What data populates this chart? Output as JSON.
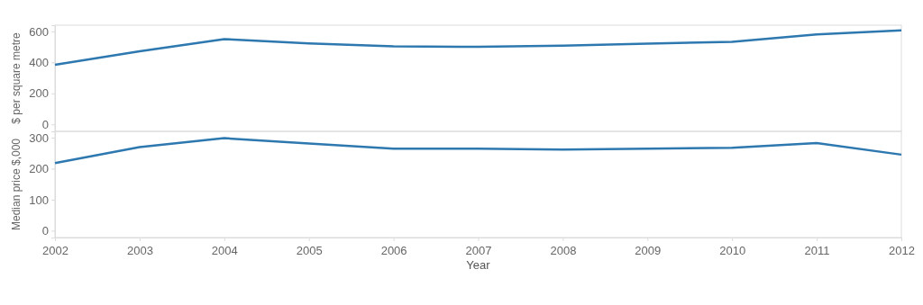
{
  "chart_data": [
    {
      "type": "line",
      "ylabel": "$ per square metre",
      "x": [
        2002,
        2003,
        2004,
        2005,
        2006,
        2007,
        2008,
        2009,
        2010,
        2011,
        2012
      ],
      "xlim": [
        2002,
        2012
      ],
      "ylim": [
        -45,
        640
      ],
      "yticks": [
        0,
        200,
        400,
        600
      ],
      "tick_labels": "y",
      "grid": false,
      "marker": "none",
      "line_style": "solid",
      "series": [
        {
          "color": "#2e78b0",
          "values": [
            384,
            472,
            550,
            523,
            503,
            500,
            508,
            521,
            533,
            580,
            607
          ]
        }
      ]
    },
    {
      "type": "line",
      "ylabel": "Median price $,000",
      "xlabel": "Year",
      "x": [
        2002,
        2003,
        2004,
        2005,
        2006,
        2007,
        2008,
        2009,
        2010,
        2011,
        2012
      ],
      "xlim": [
        2002,
        2012
      ],
      "xticks": [
        2002,
        2003,
        2004,
        2005,
        2006,
        2007,
        2008,
        2009,
        2010,
        2011,
        2012
      ],
      "ylim": [
        -22,
        320
      ],
      "yticks": [
        0,
        100,
        200,
        300
      ],
      "grid": false,
      "marker": "none",
      "line_style": "solid",
      "series": [
        {
          "color": "#2e78b0",
          "values": [
            218,
            269,
            298,
            281,
            264,
            264,
            261,
            264,
            267,
            282,
            245
          ]
        }
      ]
    }
  ]
}
